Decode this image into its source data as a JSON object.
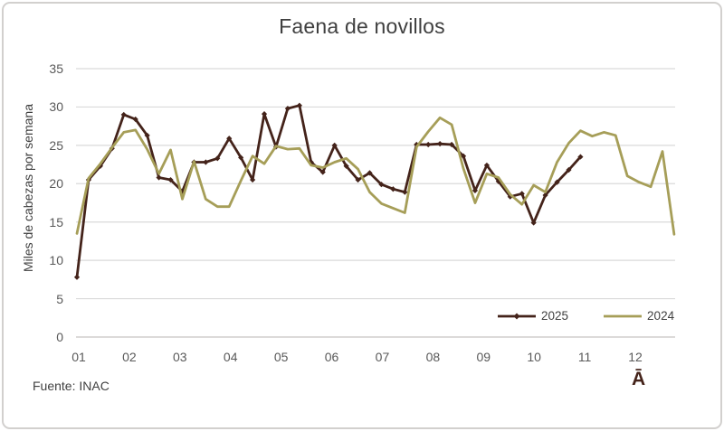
{
  "source": "Fuente: INAC",
  "watermark": "Ā",
  "colors": {
    "series_2025": "#44231a",
    "series_2024": "#a69e58",
    "gridline": "#dadada",
    "axis_line": "#c6c4c2",
    "title_text": "#3f3f3f",
    "tick_text": "#595959",
    "legend_text": "#404040"
  },
  "chart_data": {
    "type": "line",
    "title": "Faena de novillos",
    "xlabel": "",
    "ylabel": "Miles de cabezas por semana",
    "ylim": [
      0,
      35
    ],
    "ytick_step": 5,
    "y_tick_labels": [
      "0",
      "5",
      "10",
      "15",
      "20",
      "25",
      "30",
      "35"
    ],
    "x_tick_labels": [
      "01",
      "02",
      "03",
      "04",
      "05",
      "06",
      "07",
      "08",
      "09",
      "10",
      "11",
      "12"
    ],
    "x_unit": "weekly points, January to December",
    "grid": "horizontal gridlines every 5, on",
    "legend_position": "inside bottom-right",
    "series": [
      {
        "name": "2025",
        "color": "#44231a",
        "marker": "diamond",
        "values": [
          7.8,
          20.5,
          22.3,
          24.6,
          29.0,
          28.4,
          26.3,
          20.8,
          20.5,
          19.0,
          22.8,
          22.8,
          23.3,
          25.9,
          23.4,
          20.5,
          29.1,
          24.8,
          29.8,
          30.2,
          22.8,
          21.5,
          25.0,
          22.3,
          20.5,
          21.4,
          19.9,
          19.3,
          18.9,
          25.1,
          25.1,
          25.2,
          25.1,
          23.6,
          19.1,
          22.4,
          20.3,
          18.3,
          18.7,
          14.9,
          18.5,
          20.2,
          21.8,
          23.5
        ]
      },
      {
        "name": "2024",
        "color": "#a69e58",
        "marker": "none",
        "values": [
          13.5,
          20.7,
          22.6,
          24.7,
          26.7,
          27.0,
          24.5,
          21.3,
          24.4,
          18.0,
          22.9,
          18.0,
          17.0,
          17.0,
          20.4,
          23.6,
          22.6,
          24.9,
          24.5,
          24.6,
          22.4,
          22.1,
          22.8,
          23.3,
          21.9,
          18.9,
          17.4,
          16.8,
          16.2,
          24.8,
          26.8,
          28.6,
          27.7,
          22.0,
          17.5,
          21.3,
          20.8,
          18.6,
          17.3,
          19.8,
          18.9,
          22.8,
          25.3,
          26.9,
          26.2,
          26.7,
          26.3,
          21.0,
          20.2,
          19.6,
          24.2,
          13.4
        ]
      }
    ]
  }
}
